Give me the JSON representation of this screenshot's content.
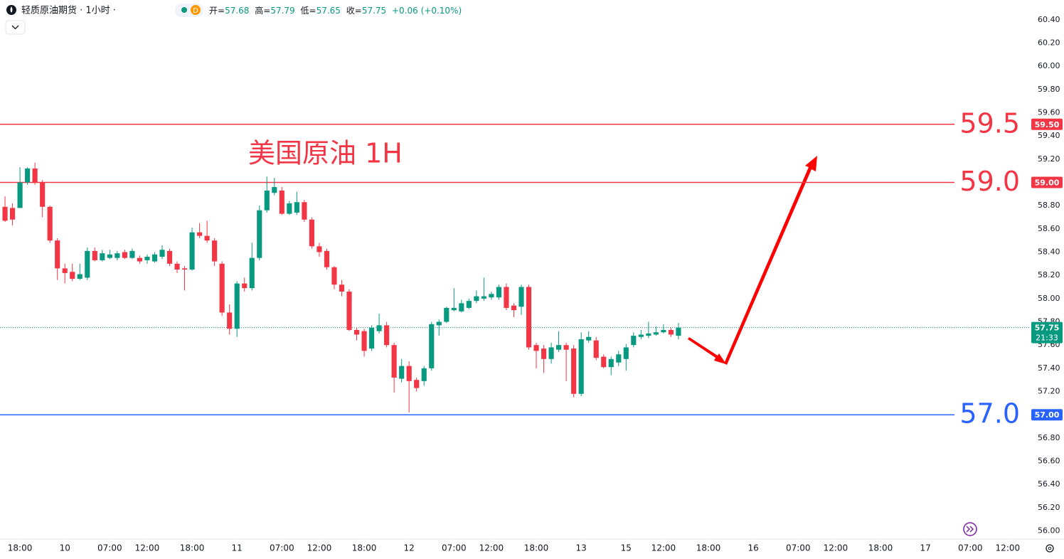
{
  "chart_data": {
    "type": "candlestick",
    "header": {
      "symbol": "轻质原油期货 · 1小时 ·",
      "badge": "D",
      "open_label": "开=",
      "open": 57.68,
      "high_label": "高=",
      "high": 57.79,
      "low_label": "低=",
      "low": 57.65,
      "close_label": "收=",
      "close": 57.75,
      "change": "+0.06 (+0.10%)"
    },
    "annotation": "美国原油 1H",
    "up_color": "#089981",
    "down_color": "#f23645",
    "candles": {
      "open": [
        58.79,
        58.78,
        58.78,
        59.0,
        59.12,
        59.0,
        58.79,
        58.5,
        58.26,
        58.23,
        58.17,
        58.18,
        58.41,
        58.33,
        58.35,
        58.35,
        58.4,
        58.35,
        58.35,
        58.33,
        58.32,
        58.36,
        58.41,
        58.3,
        58.26,
        58.25,
        58.57,
        58.54,
        58.5,
        58.3,
        57.88,
        57.74,
        58.13,
        58.09,
        58.35,
        58.76,
        58.91,
        58.93,
        58.73,
        58.74,
        58.83,
        58.68,
        58.45,
        58.41,
        58.27,
        58.12,
        58.06,
        57.73,
        57.72,
        57.57,
        57.72,
        57.77,
        57.6,
        57.31,
        57.42,
        57.3,
        57.29,
        57.4,
        57.77,
        57.8,
        57.9,
        57.89,
        57.92,
        57.98,
        58.0,
        58.01,
        58.01,
        58.1,
        57.94,
        57.93,
        58.1,
        57.6,
        57.57,
        57.48,
        57.56,
        57.6,
        57.57,
        57.18,
        57.64,
        57.64,
        57.5,
        57.41,
        57.45,
        57.48,
        57.6,
        57.67,
        57.68,
        57.69,
        57.71,
        57.73,
        57.68
      ],
      "high": [
        58.88,
        58.82,
        59.13,
        59.13,
        59.17,
        59.02,
        58.8,
        58.52,
        58.3,
        58.3,
        58.3,
        58.44,
        58.44,
        58.42,
        58.42,
        58.41,
        58.42,
        58.43,
        58.37,
        58.38,
        58.4,
        58.46,
        58.43,
        58.32,
        58.28,
        58.61,
        58.65,
        58.67,
        58.52,
        58.32,
        57.95,
        58.15,
        58.18,
        58.48,
        58.8,
        59.05,
        59.04,
        58.96,
        58.84,
        58.92,
        58.85,
        58.7,
        58.48,
        58.43,
        58.28,
        58.16,
        58.08,
        57.75,
        57.74,
        57.77,
        57.87,
        57.8,
        57.62,
        57.48,
        57.46,
        57.32,
        57.42,
        57.8,
        57.82,
        57.93,
        58.09,
        57.99,
        58.0,
        58.07,
        58.18,
        58.06,
        58.12,
        58.13,
        57.96,
        58.12,
        58.12,
        57.62,
        57.6,
        57.62,
        57.72,
        57.62,
        57.6,
        57.71,
        57.72,
        57.67,
        57.52,
        57.5,
        57.55,
        57.61,
        57.71,
        57.73,
        57.8,
        57.76,
        57.78,
        57.75,
        57.79
      ],
      "low": [
        58.66,
        58.63,
        58.78,
        58.98,
        58.98,
        58.7,
        58.48,
        58.16,
        58.13,
        58.15,
        58.16,
        58.16,
        58.32,
        58.32,
        58.34,
        58.33,
        58.34,
        58.34,
        58.3,
        58.3,
        58.31,
        58.34,
        58.28,
        58.22,
        58.07,
        58.24,
        58.52,
        58.48,
        58.28,
        57.85,
        57.69,
        57.67,
        58.06,
        58.07,
        58.33,
        58.74,
        58.89,
        58.72,
        58.72,
        58.72,
        58.66,
        58.43,
        58.36,
        58.25,
        58.08,
        58.02,
        57.72,
        57.64,
        57.5,
        57.55,
        57.7,
        57.58,
        57.19,
        57.28,
        57.02,
        57.2,
        57.25,
        57.38,
        57.68,
        57.79,
        57.89,
        57.88,
        57.91,
        57.96,
        57.98,
        57.99,
        57.99,
        57.9,
        57.84,
        57.86,
        57.56,
        57.4,
        57.36,
        57.44,
        57.54,
        57.29,
        57.15,
        57.16,
        57.62,
        57.47,
        57.4,
        57.34,
        57.42,
        57.38,
        57.58,
        57.65,
        57.66,
        57.68,
        57.7,
        57.67,
        57.65
      ],
      "close": [
        58.67,
        58.68,
        59.0,
        59.12,
        59.0,
        58.79,
        58.5,
        58.26,
        58.22,
        58.17,
        58.21,
        58.41,
        58.33,
        58.39,
        58.38,
        58.39,
        58.35,
        58.41,
        58.32,
        58.36,
        58.38,
        58.42,
        58.3,
        58.25,
        58.25,
        58.57,
        58.54,
        58.5,
        58.32,
        57.88,
        57.74,
        58.13,
        58.09,
        58.35,
        58.76,
        58.93,
        58.96,
        58.73,
        58.82,
        58.83,
        58.68,
        58.45,
        58.4,
        58.27,
        58.12,
        58.06,
        57.73,
        57.69,
        57.55,
        57.75,
        57.77,
        57.6,
        57.32,
        57.42,
        57.29,
        57.23,
        57.4,
        57.78,
        57.8,
        57.92,
        57.92,
        57.96,
        57.98,
        58.02,
        58.02,
        58.04,
        58.1,
        57.92,
        57.9,
        58.1,
        57.58,
        57.55,
        57.48,
        57.58,
        57.6,
        57.56,
        57.18,
        57.65,
        57.67,
        57.49,
        57.41,
        57.48,
        57.52,
        57.58,
        57.68,
        57.69,
        57.7,
        57.71,
        57.73,
        57.69,
        57.75
      ]
    },
    "xlim": [
      -0.67,
      136.2
    ],
    "xticks": [
      {
        "value": 2,
        "label": "18:00"
      },
      {
        "value": 8,
        "label": "10"
      },
      {
        "value": 14,
        "label": "07:00"
      },
      {
        "value": 19,
        "label": "12:00"
      },
      {
        "value": 25,
        "label": "18:00"
      },
      {
        "value": 31,
        "label": "11"
      },
      {
        "value": 37,
        "label": "07:00"
      },
      {
        "value": 42,
        "label": "12:00"
      },
      {
        "value": 48,
        "label": "18:00"
      },
      {
        "value": 54,
        "label": "12"
      },
      {
        "value": 60,
        "label": "07:00"
      },
      {
        "value": 65,
        "label": "12:00"
      },
      {
        "value": 71,
        "label": "18:00"
      },
      {
        "value": 77,
        "label": "13"
      },
      {
        "value": 83,
        "label": "15"
      },
      {
        "value": 88,
        "label": "12:00"
      },
      {
        "value": 94,
        "label": "18:00"
      },
      {
        "value": 100,
        "label": "16"
      },
      {
        "value": 106,
        "label": "07:00"
      },
      {
        "value": 111,
        "label": "12:00"
      },
      {
        "value": 117,
        "label": "18:00"
      },
      {
        "value": 123,
        "label": "17"
      },
      {
        "value": 129,
        "label": "07:00"
      },
      {
        "value": 134,
        "label": "12:00"
      }
    ],
    "ylim": [
      55.93,
      60.57
    ],
    "yticks": [
      {
        "value": 56.0,
        "label": "56.00"
      },
      {
        "value": 56.2,
        "label": "56.20"
      },
      {
        "value": 56.4,
        "label": "56.40"
      },
      {
        "value": 56.6,
        "label": "56.60"
      },
      {
        "value": 56.8,
        "label": "56.80"
      },
      {
        "value": 57.0,
        "label": "57.00"
      },
      {
        "value": 57.2,
        "label": "57.20"
      },
      {
        "value": 57.4,
        "label": "57.40"
      },
      {
        "value": 57.6,
        "label": "57.60"
      },
      {
        "value": 57.8,
        "label": "57.80"
      },
      {
        "value": 58.0,
        "label": "58.00"
      },
      {
        "value": 58.2,
        "label": "58.20"
      },
      {
        "value": 58.4,
        "label": "58.40"
      },
      {
        "value": 58.6,
        "label": "58.60"
      },
      {
        "value": 58.8,
        "label": "58.80"
      },
      {
        "value": 59.0,
        "label": "59.00"
      },
      {
        "value": 59.2,
        "label": "59.20"
      },
      {
        "value": 59.4,
        "label": "59.40"
      },
      {
        "value": 59.6,
        "label": "59.60"
      },
      {
        "value": 59.8,
        "label": "59.80"
      },
      {
        "value": 60.0,
        "label": "60.00"
      },
      {
        "value": 60.2,
        "label": "60.20"
      },
      {
        "value": 60.4,
        "label": "60.40"
      }
    ],
    "levels": [
      {
        "value": 59.5,
        "label": "59.5",
        "tag": "59.50",
        "color": "#f23645"
      },
      {
        "value": 59.0,
        "label": "59.0",
        "tag": "59.00",
        "color": "#f23645"
      },
      {
        "value": 57.0,
        "label": "57.0",
        "tag": "57.00",
        "color": "#2962ff"
      }
    ],
    "last": {
      "value": 57.75,
      "label": "57.75",
      "countdown": "21:33",
      "color": "#089981"
    }
  }
}
